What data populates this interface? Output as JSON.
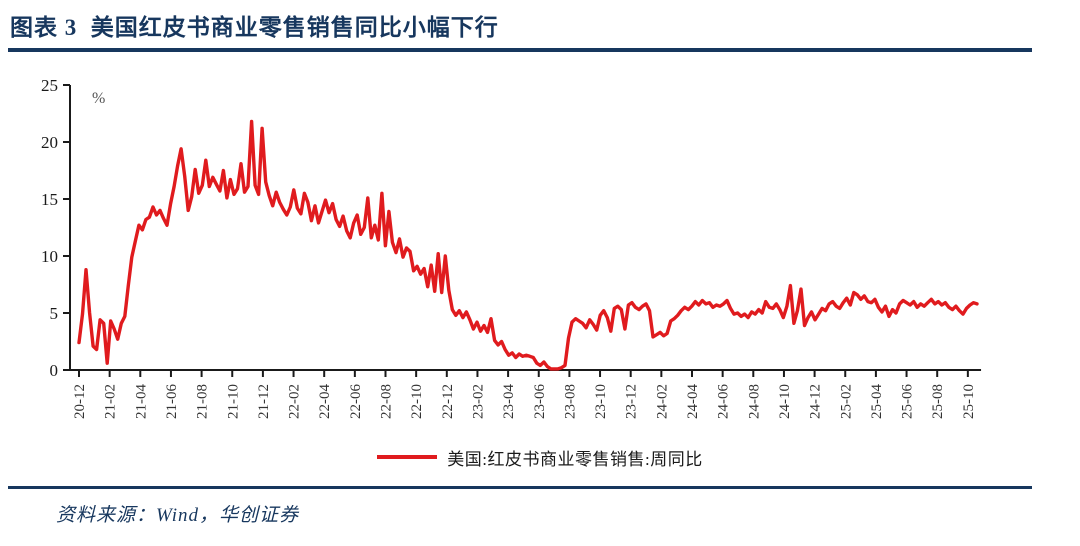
{
  "header": {
    "title": "图表 3  美国红皮书商业零售销售同比小幅下行"
  },
  "footer": {
    "source": "资料来源：Wind，华创证券"
  },
  "colors": {
    "accent_navy": "#17375e",
    "line_red": "#e01b1e",
    "axis_black": "#1a1a1a",
    "unit_gray": "#555555"
  },
  "chart_data": {
    "type": "line",
    "title": "",
    "unit_label": "%",
    "legend": [
      "美国:红皮书商业零售销售:周同比"
    ],
    "legend_position": "bottom-center",
    "grid": false,
    "ylim": [
      0,
      25
    ],
    "y_ticks": [
      0,
      5,
      10,
      15,
      20,
      25
    ],
    "x_tick_labels": [
      "20-12",
      "21-02",
      "21-04",
      "21-06",
      "21-08",
      "21-10",
      "21-12",
      "22-02",
      "22-04",
      "22-06",
      "22-08",
      "22-10",
      "22-12",
      "23-02",
      "23-04",
      "23-06",
      "23-08",
      "23-10",
      "23-12",
      "24-02",
      "24-04",
      "24-06",
      "24-08",
      "24-10",
      "24-12",
      "25-02",
      "25-04",
      "25-06",
      "25-08",
      "25-10"
    ],
    "x_months_per_tick": 2,
    "x_months_total": 58.6,
    "series": [
      {
        "name": "美国:红皮书商业零售销售:周同比",
        "color": "#e01b1e",
        "frequency": "weekly",
        "values": [
          2.4,
          4.9,
          8.8,
          5.0,
          2.1,
          1.8,
          4.4,
          4.1,
          0.6,
          4.3,
          3.6,
          2.7,
          4.1,
          4.7,
          7.4,
          9.9,
          11.3,
          12.7,
          12.3,
          13.2,
          13.4,
          14.3,
          13.6,
          14.0,
          13.3,
          12.7,
          14.6,
          16.1,
          17.9,
          19.4,
          17.0,
          14.0,
          15.2,
          17.6,
          15.5,
          16.2,
          18.4,
          16.1,
          16.9,
          16.3,
          15.7,
          17.5,
          15.1,
          16.7,
          15.4,
          15.9,
          18.1,
          15.6,
          16.1,
          21.8,
          16.2,
          15.4,
          21.2,
          16.5,
          15.3,
          14.4,
          15.6,
          14.7,
          14.1,
          13.6,
          14.3,
          15.8,
          14.2,
          13.7,
          15.5,
          14.7,
          13.1,
          14.4,
          12.9,
          13.9,
          14.9,
          13.8,
          14.6,
          13.2,
          12.6,
          13.5,
          12.2,
          11.6,
          12.9,
          13.6,
          11.9,
          12.5,
          15.1,
          11.6,
          12.7,
          11.4,
          15.5,
          10.9,
          13.9,
          11.2,
          10.3,
          11.5,
          9.9,
          10.7,
          10.4,
          8.7,
          9.1,
          8.4,
          8.9,
          7.3,
          9.2,
          6.9,
          10.2,
          6.8,
          10.0,
          7.0,
          5.3,
          4.8,
          5.2,
          4.6,
          5.1,
          4.4,
          3.6,
          4.2,
          3.4,
          3.9,
          3.3,
          4.5,
          2.6,
          2.2,
          2.5,
          1.8,
          1.3,
          1.5,
          1.1,
          1.4,
          1.2,
          1.3,
          1.2,
          1.1,
          0.6,
          0.4,
          0.7,
          0.3,
          0.1,
          0.1,
          0.1,
          0.2,
          0.4,
          2.8,
          4.2,
          4.5,
          4.3,
          4.1,
          3.7,
          4.4,
          4.0,
          3.5,
          4.8,
          5.2,
          4.6,
          3.4,
          5.4,
          5.6,
          5.3,
          3.6,
          5.7,
          5.9,
          5.5,
          5.3,
          5.6,
          5.8,
          5.2,
          2.9,
          3.1,
          3.3,
          3.0,
          3.2,
          4.3,
          4.5,
          4.8,
          5.2,
          5.5,
          5.3,
          5.6,
          6.0,
          5.7,
          6.1,
          5.8,
          5.9,
          5.5,
          5.7,
          5.6,
          5.8,
          6.1,
          5.4,
          4.9,
          5.0,
          4.7,
          4.9,
          4.6,
          5.1,
          4.9,
          5.3,
          5.0,
          6.0,
          5.5,
          5.4,
          5.8,
          5.3,
          4.6,
          5.6,
          7.4,
          4.1,
          5.2,
          7.1,
          3.9,
          4.6,
          5.1,
          4.4,
          4.9,
          5.4,
          5.2,
          5.8,
          6.0,
          5.6,
          5.4,
          5.9,
          6.3,
          5.7,
          6.8,
          6.6,
          6.2,
          6.5,
          6.0,
          5.9,
          6.2,
          5.5,
          5.1,
          5.6,
          4.7,
          5.3,
          5.0,
          5.8,
          6.1,
          5.9,
          5.7,
          6.0,
          5.5,
          5.8,
          5.6,
          5.9,
          6.2,
          5.8,
          6.0,
          5.7,
          5.9,
          5.5,
          5.3,
          5.6,
          5.2,
          4.9,
          5.4,
          5.7,
          5.9,
          5.8
        ]
      }
    ]
  }
}
